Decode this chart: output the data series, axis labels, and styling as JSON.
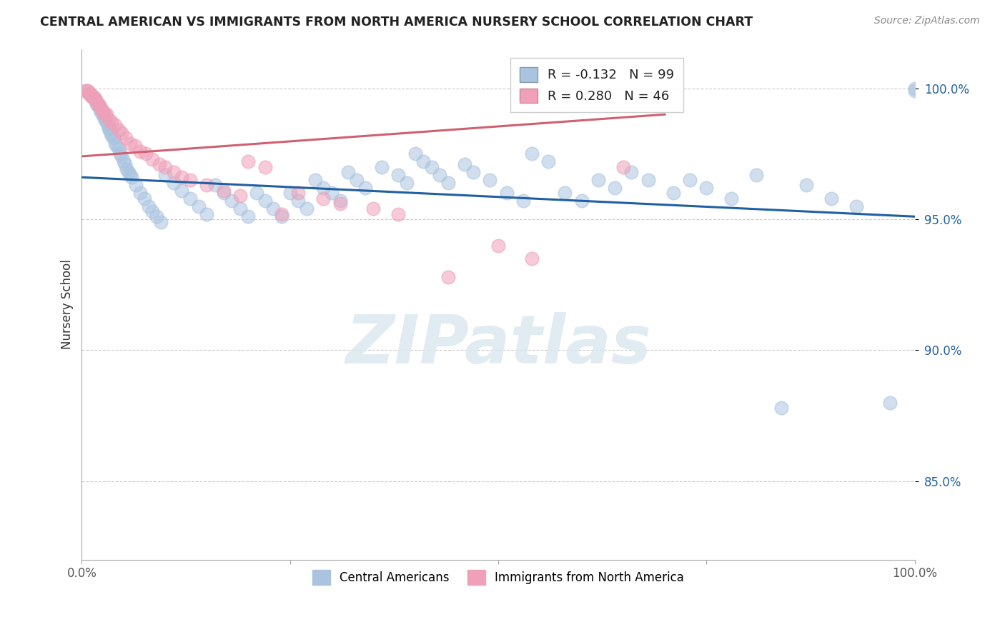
{
  "title": "CENTRAL AMERICAN VS IMMIGRANTS FROM NORTH AMERICA NURSERY SCHOOL CORRELATION CHART",
  "source": "Source: ZipAtlas.com",
  "ylabel": "Nursery School",
  "blue_R": -0.132,
  "blue_N": 99,
  "pink_R": 0.28,
  "pink_N": 46,
  "blue_color": "#aac4e0",
  "pink_color": "#f0a0b8",
  "blue_line_color": "#2060a0",
  "pink_line_color": "#d06070",
  "xlim": [
    0.0,
    1.0
  ],
  "ylim": [
    0.82,
    1.015
  ],
  "yticks": [
    0.85,
    0.9,
    0.95,
    1.0
  ],
  "ytick_labels": [
    "85.0%",
    "90.0%",
    "95.0%",
    "100.0%"
  ],
  "watermark_text": "ZIPatlas",
  "blue_line_x0": 0.0,
  "blue_line_y0": 0.966,
  "blue_line_x1": 1.0,
  "blue_line_y1": 0.951,
  "pink_line_x0": 0.0,
  "pink_line_y0": 0.974,
  "pink_line_x1": 0.7,
  "pink_line_y1": 0.99,
  "blue_x": [
    0.005,
    0.008,
    0.01,
    0.012,
    0.013,
    0.015,
    0.016,
    0.017,
    0.018,
    0.019,
    0.02,
    0.022,
    0.023,
    0.025,
    0.026,
    0.028,
    0.03,
    0.031,
    0.032,
    0.033,
    0.035,
    0.036,
    0.038,
    0.04,
    0.042,
    0.044,
    0.046,
    0.048,
    0.05,
    0.052,
    0.054,
    0.056,
    0.058,
    0.06,
    0.065,
    0.07,
    0.075,
    0.08,
    0.085,
    0.09,
    0.095,
    0.1,
    0.11,
    0.12,
    0.13,
    0.14,
    0.15,
    0.16,
    0.17,
    0.18,
    0.19,
    0.2,
    0.21,
    0.22,
    0.23,
    0.24,
    0.25,
    0.26,
    0.27,
    0.28,
    0.29,
    0.3,
    0.31,
    0.32,
    0.33,
    0.34,
    0.36,
    0.38,
    0.39,
    0.4,
    0.41,
    0.42,
    0.43,
    0.44,
    0.46,
    0.47,
    0.49,
    0.51,
    0.53,
    0.54,
    0.56,
    0.58,
    0.6,
    0.62,
    0.64,
    0.66,
    0.68,
    0.71,
    0.73,
    0.75,
    0.78,
    0.81,
    0.84,
    0.87,
    0.9,
    0.93,
    0.97,
    1.0,
    1.0
  ],
  "blue_y": [
    0.999,
    0.998,
    0.998,
    0.997,
    0.997,
    0.996,
    0.996,
    0.995,
    0.994,
    0.994,
    0.993,
    0.992,
    0.991,
    0.99,
    0.989,
    0.988,
    0.987,
    0.986,
    0.985,
    0.984,
    0.983,
    0.982,
    0.981,
    0.979,
    0.978,
    0.977,
    0.975,
    0.974,
    0.972,
    0.971,
    0.969,
    0.968,
    0.967,
    0.966,
    0.963,
    0.96,
    0.958,
    0.955,
    0.953,
    0.951,
    0.949,
    0.967,
    0.964,
    0.961,
    0.958,
    0.955,
    0.952,
    0.963,
    0.96,
    0.957,
    0.954,
    0.951,
    0.96,
    0.957,
    0.954,
    0.951,
    0.96,
    0.957,
    0.954,
    0.965,
    0.962,
    0.96,
    0.957,
    0.968,
    0.965,
    0.962,
    0.97,
    0.967,
    0.964,
    0.975,
    0.972,
    0.97,
    0.967,
    0.964,
    0.971,
    0.968,
    0.965,
    0.96,
    0.957,
    0.975,
    0.972,
    0.96,
    0.957,
    0.965,
    0.962,
    0.968,
    0.965,
    0.96,
    0.965,
    0.962,
    0.958,
    0.967,
    0.878,
    0.963,
    0.958,
    0.955,
    0.88,
    1.0,
    0.999
  ],
  "pink_x": [
    0.005,
    0.007,
    0.009,
    0.01,
    0.012,
    0.013,
    0.015,
    0.016,
    0.018,
    0.02,
    0.022,
    0.024,
    0.026,
    0.028,
    0.03,
    0.033,
    0.036,
    0.04,
    0.044,
    0.048,
    0.053,
    0.058,
    0.064,
    0.07,
    0.077,
    0.085,
    0.093,
    0.1,
    0.11,
    0.12,
    0.13,
    0.15,
    0.17,
    0.19,
    0.2,
    0.22,
    0.24,
    0.26,
    0.29,
    0.31,
    0.35,
    0.38,
    0.44,
    0.5,
    0.54,
    0.65
  ],
  "pink_y": [
    0.999,
    0.999,
    0.998,
    0.998,
    0.997,
    0.997,
    0.996,
    0.996,
    0.995,
    0.994,
    0.993,
    0.992,
    0.991,
    0.99,
    0.99,
    0.988,
    0.987,
    0.986,
    0.984,
    0.983,
    0.981,
    0.979,
    0.978,
    0.976,
    0.975,
    0.973,
    0.971,
    0.97,
    0.968,
    0.966,
    0.965,
    0.963,
    0.961,
    0.959,
    0.972,
    0.97,
    0.952,
    0.96,
    0.958,
    0.956,
    0.954,
    0.952,
    0.928,
    0.94,
    0.935,
    0.97
  ]
}
